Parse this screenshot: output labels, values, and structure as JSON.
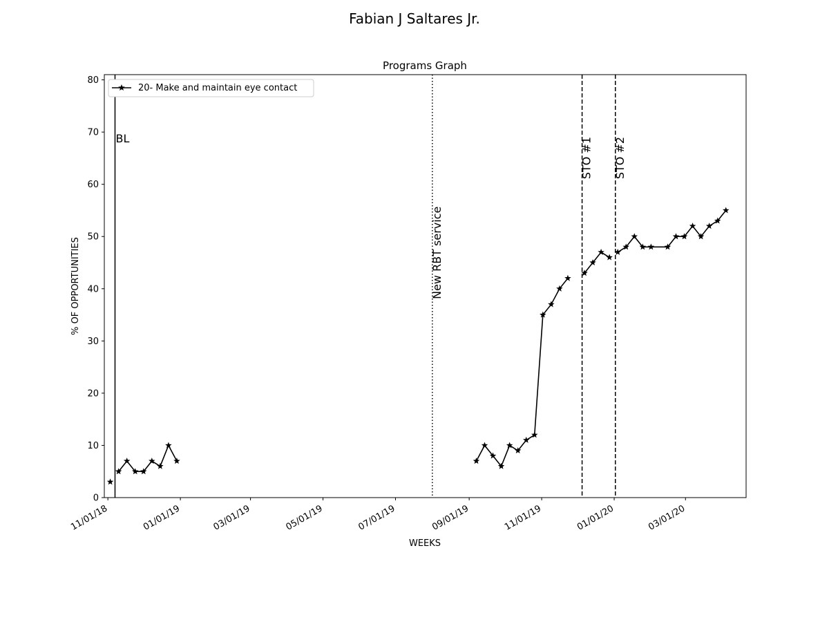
{
  "suptitle": "Fabian J  Saltares Jr.",
  "chart_data": {
    "type": "line",
    "title": "Programs Graph",
    "xlabel": "WEEKS",
    "ylabel": "% OF OPPORTUNITIES",
    "ylim": [
      0,
      81
    ],
    "xlim": [
      "2018-10-29",
      "2020-04-21"
    ],
    "yticks": [
      0,
      10,
      20,
      30,
      40,
      50,
      60,
      70,
      80
    ],
    "xticks": [
      {
        "date": "2018-11-01",
        "label": "11/01/18"
      },
      {
        "date": "2019-01-01",
        "label": "01/01/19"
      },
      {
        "date": "2019-03-01",
        "label": "03/01/19"
      },
      {
        "date": "2019-05-01",
        "label": "05/01/19"
      },
      {
        "date": "2019-07-01",
        "label": "07/01/19"
      },
      {
        "date": "2019-09-01",
        "label": "09/01/19"
      },
      {
        "date": "2019-11-01",
        "label": "11/01/19"
      },
      {
        "date": "2020-01-01",
        "label": "01/01/20"
      },
      {
        "date": "2020-03-01",
        "label": "03/01/20"
      }
    ],
    "legend": {
      "position": "upper-left"
    },
    "series": [
      {
        "name": "20- Make and maintain eye contact",
        "color": "#000000",
        "marker": "star",
        "segments": [
          [
            [
              "2018-11-03",
              3
            ]
          ],
          [
            [
              "2018-11-10",
              5
            ],
            [
              "2018-11-17",
              7
            ],
            [
              "2018-11-24",
              5
            ],
            [
              "2018-12-01",
              5
            ],
            [
              "2018-12-08",
              7
            ],
            [
              "2018-12-15",
              6
            ],
            [
              "2018-12-22",
              10
            ],
            [
              "2018-12-29",
              7
            ]
          ],
          [
            [
              "2019-09-07",
              7
            ],
            [
              "2019-09-14",
              10
            ],
            [
              "2019-09-21",
              8
            ],
            [
              "2019-09-28",
              6
            ],
            [
              "2019-10-05",
              10
            ],
            [
              "2019-10-12",
              9
            ],
            [
              "2019-10-19",
              11
            ],
            [
              "2019-10-26",
              12
            ],
            [
              "2019-11-02",
              35
            ],
            [
              "2019-11-09",
              37
            ],
            [
              "2019-11-16",
              40
            ],
            [
              "2019-11-23",
              42
            ]
          ],
          [
            [
              "2019-12-07",
              43
            ],
            [
              "2019-12-14",
              45
            ],
            [
              "2019-12-21",
              47
            ],
            [
              "2019-12-28",
              46
            ]
          ],
          [
            [
              "2020-01-04",
              47
            ],
            [
              "2020-01-11",
              48
            ],
            [
              "2020-01-18",
              50
            ],
            [
              "2020-01-25",
              48
            ],
            [
              "2020-02-01",
              48
            ],
            [
              "2020-02-15",
              48
            ],
            [
              "2020-02-22",
              50
            ],
            [
              "2020-02-29",
              50
            ],
            [
              "2020-03-07",
              52
            ],
            [
              "2020-03-14",
              50
            ],
            [
              "2020-03-21",
              52
            ],
            [
              "2020-03-28",
              53
            ],
            [
              "2020-04-04",
              55
            ]
          ]
        ]
      }
    ],
    "phase_lines": [
      {
        "date": "2018-11-07",
        "label": "BL",
        "style": "solid",
        "label_orientation": "horizontal"
      },
      {
        "date": "2019-08-01",
        "label": "New RBT service",
        "style": "dotted",
        "label_orientation": "vertical"
      },
      {
        "date": "2019-12-05",
        "label": "STO #1",
        "style": "dashed",
        "label_orientation": "vertical"
      },
      {
        "date": "2020-01-02",
        "label": "STO #2",
        "style": "dashed",
        "label_orientation": "vertical"
      }
    ]
  }
}
